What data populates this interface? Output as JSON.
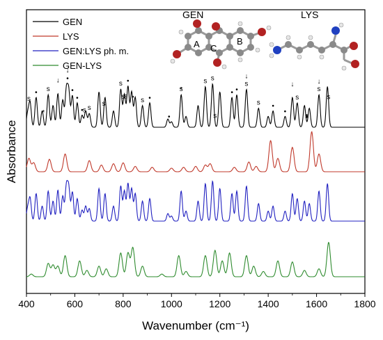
{
  "chart_data": {
    "type": "line",
    "title": "",
    "xlabel": "Wavenumber (cm⁻¹)",
    "ylabel": "Absorbance",
    "xlim": [
      400,
      1800
    ],
    "xticks": [
      400,
      600,
      800,
      1000,
      1200,
      1400,
      1600,
      1800
    ],
    "yticks": [],
    "grid": false,
    "legend_placement": "top-left",
    "series": [
      {
        "name": "GEN",
        "color": "#000000",
        "baseline": 0.7,
        "peaks": [
          [
            405,
            0.25
          ],
          [
            415,
            0.45
          ],
          [
            440,
            0.55
          ],
          [
            465,
            0.3
          ],
          [
            490,
            0.6
          ],
          [
            510,
            0.4
          ],
          [
            530,
            0.62
          ],
          [
            550,
            0.5
          ],
          [
            565,
            0.68
          ],
          [
            575,
            0.65
          ],
          [
            590,
            0.58
          ],
          [
            610,
            0.45
          ],
          [
            630,
            0.22
          ],
          [
            645,
            0.3
          ],
          [
            660,
            0.25
          ],
          [
            700,
            0.65
          ],
          [
            725,
            0.55
          ],
          [
            760,
            0.3
          ],
          [
            790,
            0.7
          ],
          [
            805,
            0.6
          ],
          [
            820,
            0.75
          ],
          [
            835,
            0.65
          ],
          [
            850,
            0.55
          ],
          [
            880,
            0.4
          ],
          [
            910,
            0.45
          ],
          [
            985,
            0.15
          ],
          [
            1000,
            0.1
          ],
          [
            1040,
            0.6
          ],
          [
            1060,
            0.2
          ],
          [
            1110,
            0.4
          ],
          [
            1140,
            0.75
          ],
          [
            1170,
            0.8
          ],
          [
            1200,
            0.65
          ],
          [
            1250,
            0.55
          ],
          [
            1270,
            0.6
          ],
          [
            1310,
            0.7
          ],
          [
            1360,
            0.35
          ],
          [
            1400,
            0.2
          ],
          [
            1420,
            0.3
          ],
          [
            1470,
            0.2
          ],
          [
            1500,
            0.55
          ],
          [
            1520,
            0.45
          ],
          [
            1550,
            0.4
          ],
          [
            1570,
            0.35
          ],
          [
            1610,
            0.6
          ],
          [
            1645,
            0.75
          ]
        ]
      },
      {
        "name": "LYS",
        "color": "#c0392b",
        "baseline": 0.05,
        "peaks": [
          [
            410,
            0.3
          ],
          [
            430,
            0.2
          ],
          [
            495,
            0.28
          ],
          [
            560,
            0.4
          ],
          [
            660,
            0.25
          ],
          [
            710,
            0.15
          ],
          [
            760,
            0.18
          ],
          [
            800,
            0.2
          ],
          [
            850,
            0.12
          ],
          [
            920,
            0.1
          ],
          [
            1000,
            0.08
          ],
          [
            1050,
            0.1
          ],
          [
            1100,
            0.12
          ],
          [
            1140,
            0.15
          ],
          [
            1160,
            0.18
          ],
          [
            1260,
            0.1
          ],
          [
            1320,
            0.22
          ],
          [
            1350,
            0.12
          ],
          [
            1410,
            0.7
          ],
          [
            1440,
            0.3
          ],
          [
            1500,
            0.55
          ],
          [
            1580,
            0.9
          ],
          [
            1610,
            0.4
          ]
        ]
      },
      {
        "name": "GEN:LYS ph. m.",
        "color": "#2020c0",
        "baseline": 0.0,
        "peaks": [
          [
            405,
            0.25
          ],
          [
            415,
            0.45
          ],
          [
            440,
            0.55
          ],
          [
            465,
            0.3
          ],
          [
            490,
            0.6
          ],
          [
            510,
            0.4
          ],
          [
            530,
            0.62
          ],
          [
            550,
            0.5
          ],
          [
            565,
            0.68
          ],
          [
            575,
            0.65
          ],
          [
            590,
            0.58
          ],
          [
            610,
            0.45
          ],
          [
            630,
            0.22
          ],
          [
            645,
            0.3
          ],
          [
            660,
            0.25
          ],
          [
            700,
            0.65
          ],
          [
            725,
            0.55
          ],
          [
            760,
            0.3
          ],
          [
            790,
            0.7
          ],
          [
            805,
            0.6
          ],
          [
            820,
            0.75
          ],
          [
            835,
            0.65
          ],
          [
            850,
            0.55
          ],
          [
            880,
            0.4
          ],
          [
            910,
            0.45
          ],
          [
            985,
            0.15
          ],
          [
            1000,
            0.1
          ],
          [
            1040,
            0.6
          ],
          [
            1060,
            0.2
          ],
          [
            1110,
            0.4
          ],
          [
            1140,
            0.75
          ],
          [
            1170,
            0.8
          ],
          [
            1200,
            0.65
          ],
          [
            1250,
            0.55
          ],
          [
            1270,
            0.6
          ],
          [
            1310,
            0.7
          ],
          [
            1360,
            0.35
          ],
          [
            1400,
            0.2
          ],
          [
            1420,
            0.3
          ],
          [
            1470,
            0.2
          ],
          [
            1500,
            0.55
          ],
          [
            1520,
            0.45
          ],
          [
            1550,
            0.4
          ],
          [
            1570,
            0.35
          ],
          [
            1610,
            0.6
          ],
          [
            1645,
            0.75
          ]
        ]
      },
      {
        "name": "GEN-LYS",
        "color": "#2e8b2e",
        "baseline": 0.0,
        "peaks": [
          [
            420,
            0.05
          ],
          [
            490,
            0.25
          ],
          [
            510,
            0.22
          ],
          [
            530,
            0.2
          ],
          [
            560,
            0.4
          ],
          [
            620,
            0.3
          ],
          [
            650,
            0.12
          ],
          [
            700,
            0.2
          ],
          [
            730,
            0.15
          ],
          [
            790,
            0.45
          ],
          [
            820,
            0.45
          ],
          [
            840,
            0.55
          ],
          [
            880,
            0.2
          ],
          [
            960,
            0.05
          ],
          [
            1030,
            0.4
          ],
          [
            1060,
            0.1
          ],
          [
            1140,
            0.4
          ],
          [
            1180,
            0.5
          ],
          [
            1210,
            0.3
          ],
          [
            1240,
            0.45
          ],
          [
            1310,
            0.4
          ],
          [
            1340,
            0.2
          ],
          [
            1380,
            0.1
          ],
          [
            1440,
            0.3
          ],
          [
            1500,
            0.28
          ],
          [
            1550,
            0.12
          ],
          [
            1610,
            0.15
          ],
          [
            1650,
            0.65
          ]
        ]
      }
    ],
    "annotations": {
      "s_marks": [
        410,
        490,
        640,
        660,
        720,
        790,
        800,
        810,
        880,
        1040,
        1140,
        1170,
        1180,
        1310,
        1360,
        1520,
        1560,
        1610,
        1650
      ],
      "arrow_marks": [
        530,
        570,
        1310,
        1500,
        1610
      ],
      "dot_marks": [
        440,
        570,
        590,
        610,
        630,
        820,
        840,
        910,
        990,
        1250,
        1270,
        1420,
        1470,
        1560
      ],
      "star_marks": [
        470,
        1040,
        1560
      ]
    }
  },
  "molecules": {
    "gen_title": "GEN",
    "lys_title": "LYS",
    "ring_a": "A",
    "ring_b": "B",
    "ring_c": "C"
  },
  "annotation_text": {
    "s": "s",
    "arrow": "↓",
    "dot": "•",
    "star": "*"
  }
}
